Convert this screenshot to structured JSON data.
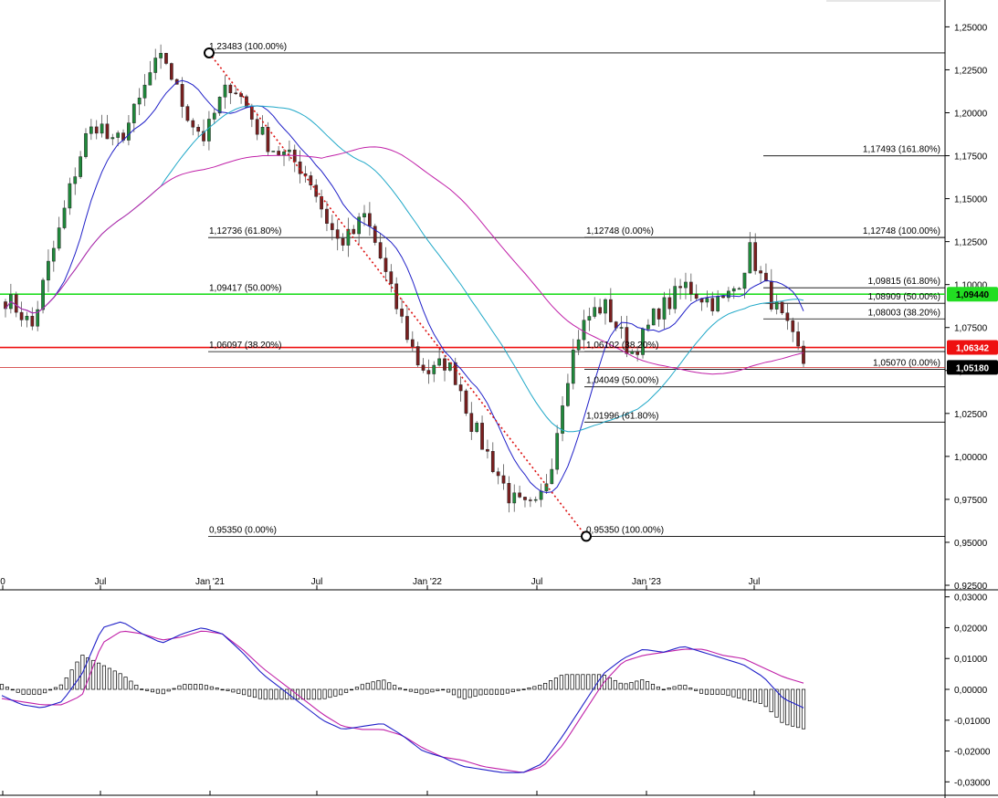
{
  "chart_data": [
    {
      "type": "candlestick",
      "title": "",
      "x_ticks": [
        "0",
        "Jul",
        "Jan '21",
        "Jul",
        "Jan '22",
        "Jul",
        "Jan '23",
        "Jul"
      ],
      "y_ticks": [
        "1,25000",
        "1,22500",
        "1,20000",
        "1,17500",
        "1,15000",
        "1,12500",
        "1,10000",
        "1,07500",
        "1,05000",
        "1,02500",
        "1,00000",
        "0,97500",
        "0,95000",
        "0,92500"
      ],
      "ylim": [
        0.925,
        1.255
      ],
      "ohlc_anchors": [
        1.092,
        1.085,
        1.075,
        1.105,
        1.13,
        1.16,
        1.185,
        1.195,
        1.18,
        1.19,
        1.205,
        1.225,
        1.232,
        1.21,
        1.195,
        1.185,
        1.205,
        1.218,
        1.205,
        1.19,
        1.18,
        1.175,
        1.17,
        1.16,
        1.14,
        1.125,
        1.128,
        1.14,
        1.12,
        1.095,
        1.075,
        1.055,
        1.048,
        1.055,
        1.045,
        1.02,
        1.005,
        0.99,
        0.975,
        0.97,
        0.97,
        0.995,
        1.04,
        1.07,
        1.083,
        1.088,
        1.075,
        1.06,
        1.07,
        1.085,
        1.09,
        1.1,
        1.095,
        1.09,
        1.09,
        1.1,
        1.12,
        1.1,
        1.085,
        1.07,
        1.055
      ],
      "moving_averages": [
        {
          "color": "#2020c8",
          "period": 10
        },
        {
          "color": "#20a8c8",
          "period": 30
        },
        {
          "color": "#c020a8",
          "period": 60
        }
      ],
      "fibonacci_labels": [
        {
          "price": 1.23483,
          "text": "1,23483 (100.00%)"
        },
        {
          "price": 1.12736,
          "text": "1,12736 (61.80%)"
        },
        {
          "price": 1.09417,
          "text": "1,09417 (50.00%)"
        },
        {
          "price": 1.06097,
          "text": "1,06097 (38.20%)"
        },
        {
          "price": 0.9535,
          "text": "0,95350 (0.00%)"
        },
        {
          "price": 0.9535,
          "text": "0,95350 (100.00%)"
        },
        {
          "price": 1.06102,
          "text": "1,06102 (38.20%)"
        },
        {
          "price": 1.04049,
          "text": "1,04049 (50.00%)"
        },
        {
          "price": 1.01996,
          "text": "1,01996 (61.80%)"
        },
        {
          "price": 1.12748,
          "text": "1,12748 (0.00%)"
        },
        {
          "price": 1.17493,
          "text": "1,17493 (161.80%)"
        },
        {
          "price": 1.12748,
          "text": "1,12748 (100.00%)"
        },
        {
          "price": 1.09815,
          "text": "1,09815 (61.80%)"
        },
        {
          "price": 1.08909,
          "text": "1,08909 (50.00%)"
        },
        {
          "price": 1.08003,
          "text": "1,08003 (38.20%)"
        },
        {
          "price": 1.0507,
          "text": "1,05070 (0.00%)"
        }
      ],
      "horizontal_levels": [
        {
          "price": 1.0944,
          "label": "1,09440",
          "color": "#22dd22"
        },
        {
          "price": 1.06342,
          "label": "1,06342",
          "color": "#ee1111"
        },
        {
          "price": 1.0518,
          "label": "1,05180",
          "color": "#000000"
        }
      ],
      "trendline": {
        "from": 1.23483,
        "to": 0.9535,
        "color": "#dd1111"
      }
    },
    {
      "type": "macd",
      "title": "",
      "y_ticks": [
        "0,03000",
        "0,02000",
        "0,01000",
        "0,00000",
        "-0,01000",
        "-0,02000",
        "-0,03000"
      ],
      "ylim": [
        -0.0305,
        0.0305
      ],
      "macd_anchors": [
        -0.002,
        -0.005,
        -0.006,
        -0.004,
        0.005,
        0.02,
        0.022,
        0.018,
        0.015,
        0.018,
        0.02,
        0.018,
        0.012,
        0.005,
        0.0,
        -0.005,
        -0.01,
        -0.013,
        -0.012,
        -0.011,
        -0.015,
        -0.02,
        -0.022,
        -0.025,
        -0.026,
        -0.027,
        -0.027,
        -0.024,
        -0.015,
        -0.005,
        0.005,
        0.01,
        0.013,
        0.012,
        0.014,
        0.012,
        0.01,
        0.008,
        0.004,
        -0.003,
        -0.006
      ],
      "signal_anchors": [
        -0.003,
        -0.004,
        -0.005,
        -0.005,
        -0.002,
        0.015,
        0.019,
        0.018,
        0.016,
        0.017,
        0.019,
        0.018,
        0.013,
        0.007,
        0.002,
        -0.003,
        -0.008,
        -0.012,
        -0.013,
        -0.013,
        -0.015,
        -0.019,
        -0.022,
        -0.023,
        -0.025,
        -0.026,
        -0.027,
        -0.025,
        -0.018,
        -0.008,
        0.002,
        0.009,
        0.011,
        0.012,
        0.013,
        0.013,
        0.011,
        0.01,
        0.007,
        0.004,
        0.002
      ],
      "macd_color": "#2020c8",
      "signal_color": "#c020a8"
    }
  ]
}
